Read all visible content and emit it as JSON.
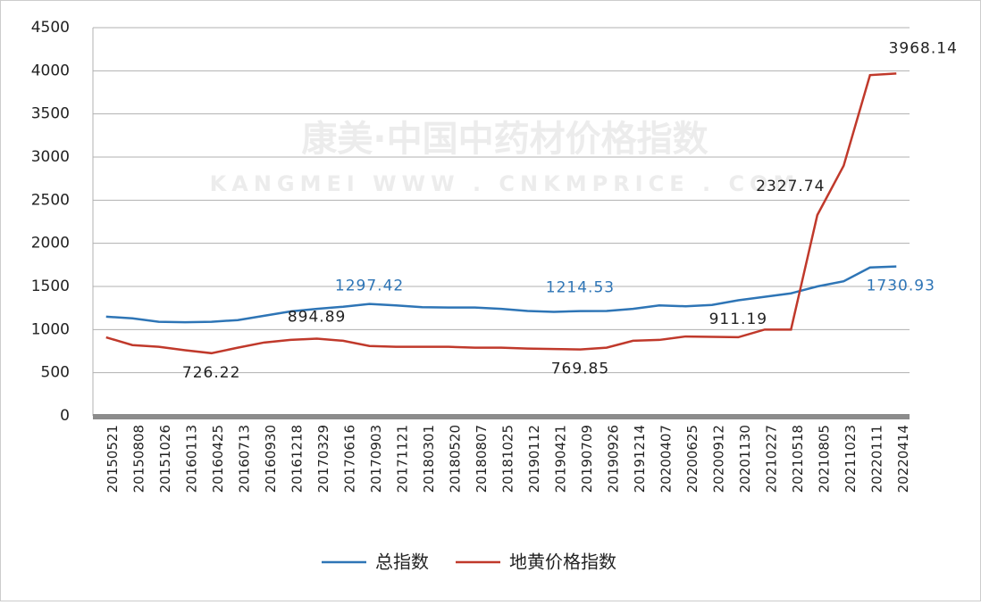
{
  "chart_data": {
    "type": "line",
    "watermark": [
      "康美·中国中药材价格指数",
      "KANGMEI WWW . CNKMPRICE . COM"
    ],
    "categories": [
      "20150521",
      "20150808",
      "20151026",
      "20160113",
      "20160425",
      "20160713",
      "20160930",
      "20161218",
      "20170329",
      "20170616",
      "20170903",
      "20171121",
      "20180301",
      "20180520",
      "20180807",
      "20181025",
      "20190112",
      "20190421",
      "20190709",
      "20190926",
      "20191214",
      "20200407",
      "20200625",
      "20200912",
      "20201130",
      "20210227",
      "20210518",
      "20210805",
      "20211023",
      "20220111",
      "20220414"
    ],
    "series": [
      {
        "name": "总指数",
        "color": "#2e75b6",
        "label_color": "#2e75b6",
        "values": [
          1150,
          1130,
          1090,
          1085,
          1090,
          1110,
          1160,
          1210,
          1240,
          1265,
          1297.42,
          1280,
          1260,
          1255,
          1255,
          1240,
          1215,
          1205,
          1214.53,
          1215,
          1240,
          1280,
          1270,
          1285,
          1340,
          1380,
          1420,
          1500,
          1560,
          1720,
          1730.93
        ],
        "value_labels": [
          null,
          null,
          null,
          null,
          null,
          null,
          null,
          null,
          null,
          null,
          "1297.42",
          null,
          null,
          null,
          null,
          null,
          null,
          null,
          "1214.53",
          null,
          null,
          null,
          null,
          null,
          null,
          null,
          null,
          null,
          null,
          null,
          "1730.93"
        ]
      },
      {
        "name": "地黄价格指数",
        "color": "#c0392b",
        "label_color": "#222222",
        "values": [
          910,
          820,
          800,
          760,
          726.22,
          790,
          850,
          880,
          894.89,
          870,
          810,
          800,
          800,
          800,
          790,
          790,
          780,
          775,
          769.85,
          790,
          870,
          880,
          920,
          915,
          911.19,
          1000,
          1000,
          2327.74,
          2900,
          3950,
          3968.14
        ],
        "value_labels": [
          null,
          null,
          null,
          null,
          "726.22",
          null,
          null,
          null,
          "894.89",
          null,
          null,
          null,
          null,
          null,
          null,
          null,
          null,
          null,
          "769.85",
          null,
          null,
          null,
          null,
          null,
          "911.19",
          null,
          null,
          "2327.74",
          null,
          null,
          "3968.14"
        ]
      }
    ],
    "ylim": [
      0,
      4500
    ],
    "yticks": [
      0,
      500,
      1000,
      1500,
      2000,
      2500,
      3000,
      3500,
      4000,
      4500
    ],
    "grid": true,
    "legend": "bottom"
  }
}
